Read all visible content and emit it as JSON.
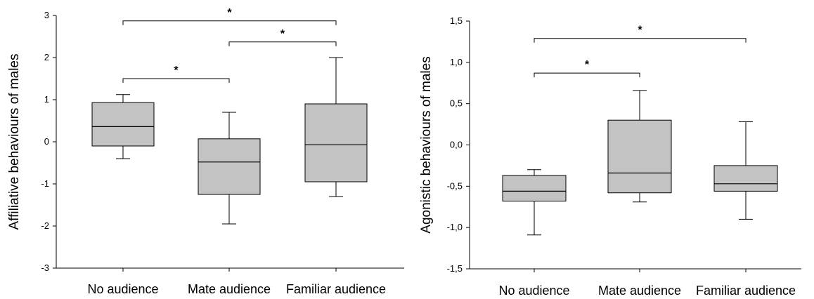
{
  "colors": {
    "box_fill": "#c3c3c3",
    "line": "#000000"
  },
  "chart_data": [
    {
      "type": "boxplot",
      "ylabel": "Affiliative behaviours of males",
      "ylim": [
        -3,
        3
      ],
      "yticks": [
        -3,
        -2,
        -1,
        0,
        1,
        2,
        3
      ],
      "ytick_labels": [
        "-3",
        "-2",
        "-1",
        "0",
        "1",
        "2",
        "3"
      ],
      "categories": [
        "No audience",
        "Mate audience",
        "Familiar audience"
      ],
      "boxes": [
        {
          "min": -0.4,
          "q1": -0.1,
          "median": 0.36,
          "q3": 0.93,
          "max": 1.12
        },
        {
          "min": -1.95,
          "q1": -1.25,
          "median": -0.48,
          "q3": 0.07,
          "max": 0.7
        },
        {
          "min": -1.3,
          "q1": -0.95,
          "median": -0.07,
          "q3": 0.9,
          "max": 2.0
        }
      ],
      "significance": [
        {
          "from": 0,
          "to": 1,
          "y": 1.5,
          "label": "*"
        },
        {
          "from": 1,
          "to": 2,
          "y": 2.37,
          "label": "*"
        },
        {
          "from": 0,
          "to": 2,
          "y": 2.87,
          "label": "*"
        }
      ]
    },
    {
      "type": "boxplot",
      "ylabel": "Agonistic behaviours of males",
      "ylim": [
        -1.5,
        1.5
      ],
      "yticks": [
        -1.5,
        -1.0,
        -0.5,
        0.0,
        0.5,
        1.0,
        1.5
      ],
      "ytick_labels": [
        "-1,5",
        "-1,0",
        "-0,5",
        "0,0",
        "0,5",
        "1,0",
        "1,5"
      ],
      "categories": [
        "No audience",
        "Mate audience",
        "Familiar audience"
      ],
      "boxes": [
        {
          "min": -1.09,
          "q1": -0.68,
          "median": -0.56,
          "q3": -0.37,
          "max": -0.3
        },
        {
          "min": -0.69,
          "q1": -0.58,
          "median": -0.34,
          "q3": 0.3,
          "max": 0.66
        },
        {
          "min": -0.9,
          "q1": -0.56,
          "median": -0.47,
          "q3": -0.25,
          "max": 0.28
        }
      ],
      "significance": [
        {
          "from": 0,
          "to": 1,
          "y": 0.87,
          "label": "*"
        },
        {
          "from": 0,
          "to": 2,
          "y": 1.29,
          "label": "*"
        }
      ]
    }
  ]
}
